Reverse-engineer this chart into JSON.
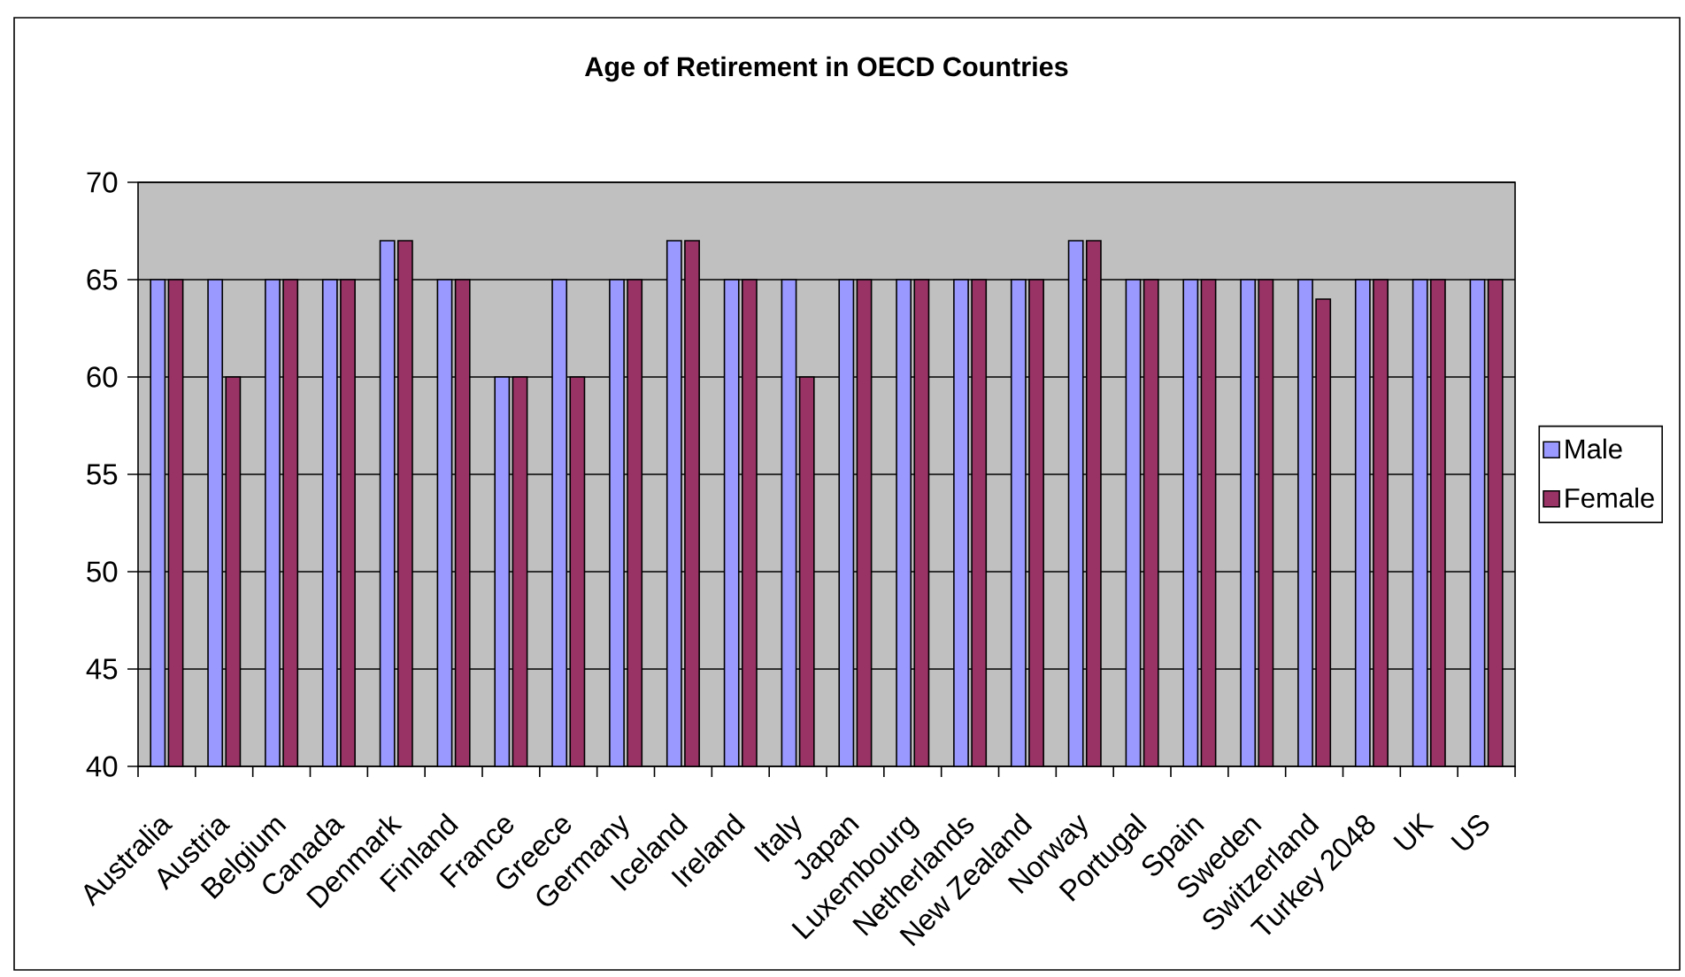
{
  "chart_data": {
    "type": "bar",
    "title": "Age of Retirement in OECD Countries",
    "categories": [
      "Australia",
      "Austria",
      "Belgium",
      "Canada",
      "Denmark",
      "Finland",
      "France",
      "Greece",
      "Germany",
      "Iceland",
      "Ireland",
      "Italy",
      "Japan",
      "Luxembourg",
      "Netherlands",
      "New Zealand",
      "Norway",
      "Portugal",
      "Spain",
      "Sweden",
      "Switzerland",
      "Turkey 2048",
      "UK",
      "US"
    ],
    "series": [
      {
        "name": "Male",
        "color": "#9999ff",
        "values": [
          65,
          65,
          65,
          65,
          67,
          65,
          60,
          65,
          65,
          67,
          65,
          65,
          65,
          65,
          65,
          65,
          67,
          65,
          65,
          65,
          65,
          65,
          65,
          65
        ]
      },
      {
        "name": "Female",
        "color": "#993366",
        "values": [
          65,
          60,
          65,
          65,
          67,
          65,
          60,
          60,
          65,
          67,
          65,
          60,
          65,
          65,
          65,
          65,
          67,
          65,
          65,
          65,
          64,
          65,
          65,
          65
        ]
      }
    ],
    "ylim": [
      40,
      70
    ],
    "yticks": [
      40,
      45,
      50,
      55,
      60,
      65,
      70
    ],
    "grid": "y",
    "legend": "right"
  }
}
